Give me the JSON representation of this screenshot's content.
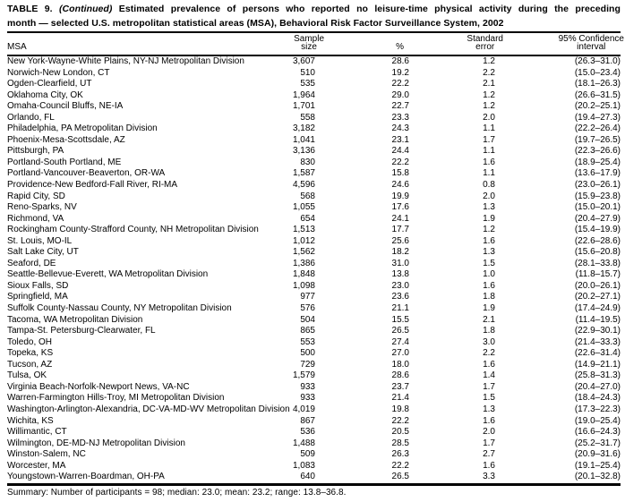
{
  "title": {
    "label": "TABLE 9.",
    "continued": "(Continued)",
    "line1_rest": "Estimated prevalence of persons who reported no leisure-time physical activity during the preceding",
    "line2": "month — selected U.S. metropolitan statistical areas (MSA), Behavioral Risk Factor Surveillance System, 2002"
  },
  "table": {
    "columns": {
      "msa": "MSA",
      "sample_l1": "Sample",
      "sample_l2": "size",
      "percent": "%",
      "se_l1": "Standard",
      "se_l2": "error",
      "ci_l1": "95% Confidence",
      "ci_l2": "interval"
    },
    "rows": [
      [
        "New York-Wayne-White Plains, NY-NJ Metropolitan Division",
        "3,607",
        "28.6",
        "1.2",
        "(26.3–31.0)"
      ],
      [
        "Norwich-New London, CT",
        "510",
        "19.2",
        "2.2",
        "(15.0–23.4)"
      ],
      [
        "Ogden-Clearfield, UT",
        "535",
        "22.2",
        "2.1",
        "(18.1–26.3)"
      ],
      [
        "Oklahoma City, OK",
        "1,964",
        "29.0",
        "1.2",
        "(26.6–31.5)"
      ],
      [
        "Omaha-Council Bluffs, NE-IA",
        "1,701",
        "22.7",
        "1.2",
        "(20.2–25.1)"
      ],
      [
        "Orlando, FL",
        "558",
        "23.3",
        "2.0",
        "(19.4–27.3)"
      ],
      [
        "Philadelphia, PA Metropolitan Division",
        "3,182",
        "24.3",
        "1.1",
        "(22.2–26.4)"
      ],
      [
        "Phoenix-Mesa-Scottsdale, AZ",
        "1,041",
        "23.1",
        "1.7",
        "(19.7–26.5)"
      ],
      [
        "Pittsburgh, PA",
        "3,136",
        "24.4",
        "1.1",
        "(22.3–26.6)"
      ],
      [
        "Portland-South Portland, ME",
        "830",
        "22.2",
        "1.6",
        "(18.9–25.4)"
      ],
      [
        "Portland-Vancouver-Beaverton, OR-WA",
        "1,587",
        "15.8",
        "1.1",
        "(13.6–17.9)"
      ],
      [
        "Providence-New Bedford-Fall River, RI-MA",
        "4,596",
        "24.6",
        "0.8",
        "(23.0–26.1)"
      ],
      [
        "Rapid City, SD",
        "568",
        "19.9",
        "2.0",
        "(15.9–23.8)"
      ],
      [
        "Reno-Sparks, NV",
        "1,055",
        "17.6",
        "1.3",
        "(15.0–20.1)"
      ],
      [
        "Richmond, VA",
        "654",
        "24.1",
        "1.9",
        "(20.4–27.9)"
      ],
      [
        "Rockingham County-Strafford County, NH Metropolitan Division",
        "1,513",
        "17.7",
        "1.2",
        "(15.4–19.9)"
      ],
      [
        "St. Louis, MO-IL",
        "1,012",
        "25.6",
        "1.6",
        "(22.6–28.6)"
      ],
      [
        "Salt Lake City, UT",
        "1,562",
        "18.2",
        "1.3",
        "(15.6–20.8)"
      ],
      [
        "Seaford, DE",
        "1,386",
        "31.0",
        "1.5",
        "(28.1–33.8)"
      ],
      [
        "Seattle-Bellevue-Everett, WA Metropolitan Division",
        "1,848",
        "13.8",
        "1.0",
        "(11.8–15.7)"
      ],
      [
        "Sioux Falls, SD",
        "1,098",
        "23.0",
        "1.6",
        "(20.0–26.1)"
      ],
      [
        "Springfield, MA",
        "977",
        "23.6",
        "1.8",
        "(20.2–27.1)"
      ],
      [
        "Suffolk County-Nassau County, NY Metropolitan Division",
        "576",
        "21.1",
        "1.9",
        "(17.4–24.9)"
      ],
      [
        "Tacoma, WA Metropolitan Division",
        "504",
        "15.5",
        "2.1",
        "(11.4–19.5)"
      ],
      [
        "Tampa-St. Petersburg-Clearwater, FL",
        "865",
        "26.5",
        "1.8",
        "(22.9–30.1)"
      ],
      [
        "Toledo, OH",
        "553",
        "27.4",
        "3.0",
        "(21.4–33.3)"
      ],
      [
        "Topeka, KS",
        "500",
        "27.0",
        "2.2",
        "(22.6–31.4)"
      ],
      [
        "Tucson, AZ",
        "729",
        "18.0",
        "1.6",
        "(14.9–21.1)"
      ],
      [
        "Tulsa, OK",
        "1,579",
        "28.6",
        "1.4",
        "(25.8–31.3)"
      ],
      [
        "Virginia Beach-Norfolk-Newport News, VA-NC",
        "933",
        "23.7",
        "1.7",
        "(20.4–27.0)"
      ],
      [
        "Warren-Farmington Hills-Troy, MI Metropolitan Division",
        "933",
        "21.4",
        "1.5",
        "(18.4–24.3)"
      ],
      [
        "Washington-Arlington-Alexandria, DC-VA-MD-WV Metropolitan Division",
        "4,019",
        "19.8",
        "1.3",
        "(17.3–22.3)"
      ],
      [
        "Wichita, KS",
        "867",
        "22.2",
        "1.6",
        "(19.0–25.4)"
      ],
      [
        "Willimantic, CT",
        "536",
        "20.5",
        "2.0",
        "(16.6–24.3)"
      ],
      [
        "Wilmington, DE-MD-NJ Metropolitan Division",
        "1,488",
        "28.5",
        "1.7",
        "(25.2–31.7)"
      ],
      [
        "Winston-Salem, NC",
        "509",
        "26.3",
        "2.7",
        "(20.9–31.6)"
      ],
      [
        "Worcester, MA",
        "1,083",
        "22.2",
        "1.6",
        "(19.1–25.4)"
      ],
      [
        "Youngstown-Warren-Boardman, OH-PA",
        "640",
        "26.5",
        "3.3",
        "(20.1–32.8)"
      ]
    ]
  },
  "summary": "Summary: Number of participants = 98; median: 23.0; mean: 23.2; range: 13.8–36.8."
}
